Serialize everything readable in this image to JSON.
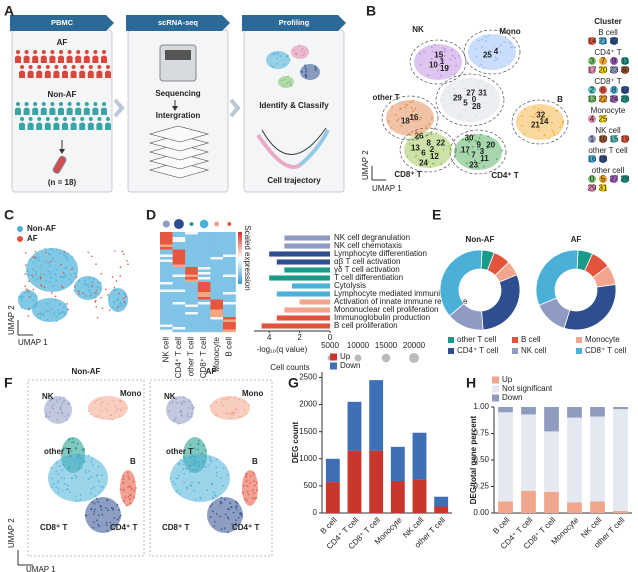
{
  "panel_letters": [
    "A",
    "B",
    "C",
    "D",
    "E",
    "F",
    "G",
    "H"
  ],
  "A": {
    "steps": [
      "PBMC",
      "scRNA-seq",
      "Profiling"
    ],
    "groups": [
      "AF",
      "Non-AF"
    ],
    "sample": "(n = 18)",
    "labels": [
      "Sequencing",
      "Intergration",
      "Identify & Classify",
      "Cell trajectory"
    ]
  },
  "B": {
    "cell_types": [
      "NK",
      "Mono",
      "other T",
      "B",
      "CD8⁺ T",
      "CD4⁺ T"
    ],
    "x_label": "UMAP 1",
    "y_label": "UMAP 2",
    "legend_title": "Cluster",
    "clusters": [
      {
        "name": "B cell",
        "ids": [
          "14",
          "21",
          "32"
        ]
      },
      {
        "name": "CD4⁺ T",
        "ids": [
          "3",
          "7",
          "9",
          "11",
          "17",
          "20",
          "23",
          "30"
        ]
      },
      {
        "name": "CD8⁺ T",
        "ids": [
          "2",
          "6",
          "8",
          "12",
          "13",
          "22",
          "24",
          "26"
        ]
      },
      {
        "name": "Monocyte",
        "ids": [
          "4",
          "25"
        ]
      },
      {
        "name": "NK cell",
        "ids": [
          "1",
          "10",
          "15",
          "19"
        ]
      },
      {
        "name": "other T cell",
        "ids": [
          "16",
          "18"
        ]
      },
      {
        "name": "other  cell",
        "ids": [
          "0",
          "5",
          "27",
          "28",
          "29",
          "31"
        ]
      }
    ]
  },
  "C": {
    "legend": [
      "Non-AF",
      "AF"
    ],
    "x_label": "UMAP 1",
    "y_label": "UMAP 2"
  },
  "F": {
    "titles": [
      "Non-AF",
      "AF"
    ],
    "cell_types": [
      "NK",
      "Mono",
      "other T",
      "B",
      "CD8⁺ T",
      "CD4⁺ T"
    ],
    "x_label": "UMAP 1",
    "y_label": "UMAP 2"
  },
  "chart_data": [
    {
      "type": "barh",
      "heatmap_columns": [
        "NK cell",
        "CD4⁺ T cell",
        "other T cell",
        "CD8⁺ T cell",
        "Monocyte",
        "B cell"
      ],
      "cell_counts": [
        10000,
        20000,
        3000,
        15000,
        5000,
        3000
      ],
      "colorbar_label": "Scaled expression",
      "categories": [
        "NK cell degranulation",
        "NK cell chemotaxis",
        "Lymphocyte differentiation",
        "αβ T cell activation",
        "γδ T cell activation",
        "T cell differentiation",
        "Cytolysis",
        "Lymphocyte mediated immunity",
        "Activation of innate immune response",
        "Mononuclear cell proliferation",
        "Immunoglobulin production",
        "B cell proliferation"
      ],
      "values": [
        3,
        3,
        4,
        3.5,
        3,
        4,
        2.5,
        3.5,
        2,
        3,
        3.5,
        4.5
      ],
      "colors": [
        "#8f9bc2",
        "#8f9bc2",
        "#2f4e8f",
        "#2f4e8f",
        "#1a9a8a",
        "#1a9a8a",
        "#4bb0d8",
        "#4bb0d8",
        "#f0a58c",
        "#f0a58c",
        "#e3533c",
        "#e3533c"
      ],
      "xlim": [
        5,
        0
      ],
      "xticks": [
        4,
        2,
        0
      ],
      "xlabel": "-log₁₀(q value)",
      "size_legend_title": "Cell counts",
      "size_legend": [
        5000,
        10000,
        15000,
        20000
      ]
    },
    {
      "type": "pie",
      "categories": [
        "other T cell",
        "B cell",
        "Monocyte",
        "CD4⁺ T cell",
        "NK cell",
        "CD8⁺ T cell"
      ],
      "colors": [
        "#1a9a8a",
        "#e3533c",
        "#f0a58c",
        "#2f4e8f",
        "#8f9bc2",
        "#4bb0d8"
      ],
      "series": [
        {
          "name": "Non-AF",
          "values": [
            5,
            7,
            6,
            30,
            15,
            37
          ]
        },
        {
          "name": "AF",
          "values": [
            6,
            8,
            8,
            32,
            14,
            32
          ]
        }
      ]
    },
    {
      "type": "stacked_bar",
      "ylabel": "DEG count",
      "categories": [
        "B cell",
        "CD4⁺ T cell",
        "CD8⁺ T cell",
        "Monocyte",
        "NK cell",
        "other T cell"
      ],
      "series": [
        {
          "name": "Up",
          "color": "#c8362e",
          "values": [
            570,
            1150,
            1150,
            590,
            620,
            120
          ]
        },
        {
          "name": "Down",
          "color": "#3f6fb5",
          "values": [
            430,
            900,
            1300,
            630,
            860,
            180
          ]
        }
      ],
      "ylim": [
        0,
        2600
      ],
      "yticks": [
        0,
        500,
        1000,
        1500,
        2000,
        2500
      ]
    },
    {
      "type": "stacked_bar",
      "ylabel": "DEG/total gene percent",
      "categories": [
        "B cell",
        "CD4⁺ T cell",
        "CD8⁺ T cell",
        "Monocyte",
        "NK cell",
        "other T cell"
      ],
      "series": [
        {
          "name": "Up",
          "color": "#f0a58c",
          "values": [
            0.11,
            0.21,
            0.2,
            0.1,
            0.11,
            0.02
          ]
        },
        {
          "name": "Not significant",
          "color": "#e4e8f0",
          "values": [
            0.84,
            0.72,
            0.57,
            0.8,
            0.8,
            0.96
          ]
        },
        {
          "name": "Down",
          "color": "#8f9bbf",
          "values": [
            0.05,
            0.07,
            0.23,
            0.1,
            0.09,
            0.02
          ]
        }
      ],
      "ylim": [
        0,
        1.0
      ],
      "yticks": [
        {
          "value": 0,
          "label": "0.00"
        },
        {
          "value": 0.25,
          "label": "0.25"
        },
        {
          "value": 0.5,
          "label": "0.50"
        },
        {
          "value": 0.75,
          "label": "0.75"
        },
        {
          "value": 1.0,
          "label": "1.00"
        }
      ]
    }
  ]
}
